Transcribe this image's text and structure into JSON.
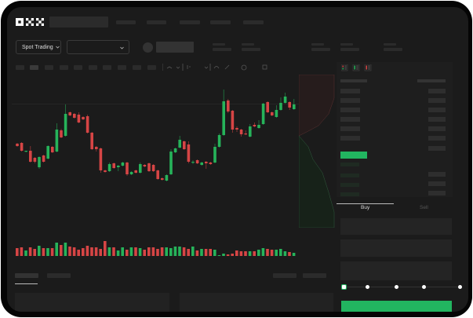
{
  "header": {
    "logo": "OKX"
  },
  "toolbar": {
    "market_selector": "Spot Trading"
  },
  "trade_panel": {
    "tabs": [
      {
        "label": "Buy",
        "active": true
      },
      {
        "label": "Sell",
        "active": false
      }
    ],
    "slider_value": 0
  },
  "colors": {
    "up": "#26b35a",
    "down": "#d64545",
    "background": "#1b1b1b",
    "accent": "#22b560"
  },
  "chart_data": {
    "type": "candlestick",
    "candles": [
      [
        67,
        68,
        63,
        64
      ],
      [
        68,
        69,
        57,
        58
      ],
      [
        57,
        58,
        56,
        58
      ],
      [
        58,
        64,
        43,
        44
      ],
      [
        49,
        50,
        42,
        44
      ],
      [
        37,
        51,
        35,
        50
      ],
      [
        52,
        53,
        43,
        44
      ],
      [
        48,
        65,
        47,
        64
      ],
      [
        63,
        64,
        55,
        56
      ],
      [
        57,
        93,
        56,
        85
      ],
      [
        84,
        86,
        74,
        75
      ],
      [
        77,
        117,
        76,
        105
      ],
      [
        107,
        108,
        102,
        103
      ],
      [
        105,
        106,
        99,
        100
      ],
      [
        104,
        107,
        93,
        94
      ],
      [
        101,
        102,
        97,
        98
      ],
      [
        102,
        104,
        80,
        81
      ],
      [
        81,
        82,
        59,
        60
      ],
      [
        63,
        64,
        57,
        60
      ],
      [
        61,
        62,
        30,
        33
      ],
      [
        33,
        34,
        30,
        31
      ],
      [
        32,
        43,
        31,
        41
      ],
      [
        42,
        43,
        35,
        36
      ],
      [
        37,
        40,
        32,
        39
      ],
      [
        39,
        44,
        38,
        43
      ],
      [
        43,
        44,
        26,
        28
      ],
      [
        28,
        32,
        27,
        31
      ],
      [
        33,
        34,
        29,
        30
      ],
      [
        30,
        43,
        29,
        41
      ],
      [
        40,
        41,
        37,
        38
      ],
      [
        42,
        43,
        31,
        32
      ],
      [
        40,
        41,
        31,
        32
      ],
      [
        33,
        34,
        21,
        22
      ],
      [
        23,
        24,
        20,
        21
      ],
      [
        20,
        28,
        19,
        27
      ],
      [
        28,
        60,
        27,
        57
      ],
      [
        56,
        62,
        55,
        61
      ],
      [
        62,
        77,
        61,
        72
      ],
      [
        70,
        71,
        59,
        60
      ],
      [
        66,
        70,
        42,
        44
      ],
      [
        43,
        46,
        41,
        44
      ],
      [
        46,
        47,
        41,
        42
      ],
      [
        40,
        44,
        39,
        43
      ],
      [
        44,
        45,
        35,
        42
      ],
      [
        43,
        44,
        40,
        41
      ],
      [
        43,
        67,
        42,
        63
      ],
      [
        63,
        80,
        62,
        78
      ],
      [
        78,
        136,
        77,
        121
      ],
      [
        122,
        124,
        106,
        108
      ],
      [
        109,
        110,
        81,
        85
      ],
      [
        87,
        89,
        82,
        85
      ],
      [
        85,
        86,
        76,
        79
      ],
      [
        80,
        84,
        78,
        79
      ],
      [
        76,
        92,
        75,
        89
      ],
      [
        91,
        94,
        88,
        89
      ],
      [
        87,
        97,
        86,
        91
      ],
      [
        92,
        119,
        91,
        118
      ],
      [
        120,
        121,
        106,
        107
      ],
      [
        107,
        108,
        102,
        103
      ],
      [
        101,
        116,
        100,
        110
      ],
      [
        110,
        126,
        109,
        119
      ],
      [
        119,
        132,
        118,
        127
      ],
      [
        120,
        121,
        110,
        113
      ],
      [
        111,
        124,
        110,
        117
      ]
    ],
    "volume": [
      10,
      11,
      7,
      11,
      9,
      13,
      10,
      10,
      10,
      17,
      14,
      17,
      12,
      11,
      8,
      10,
      13,
      11,
      11,
      9,
      19,
      11,
      11,
      7,
      11,
      8,
      11,
      11,
      10,
      8,
      11,
      11,
      9,
      11,
      11,
      10,
      12,
      12,
      11,
      9,
      12,
      7,
      9,
      9,
      9,
      8,
      1,
      3,
      2,
      3,
      7,
      6,
      6,
      6,
      6,
      8,
      10,
      9,
      8,
      8,
      9,
      6,
      5,
      4
    ]
  }
}
